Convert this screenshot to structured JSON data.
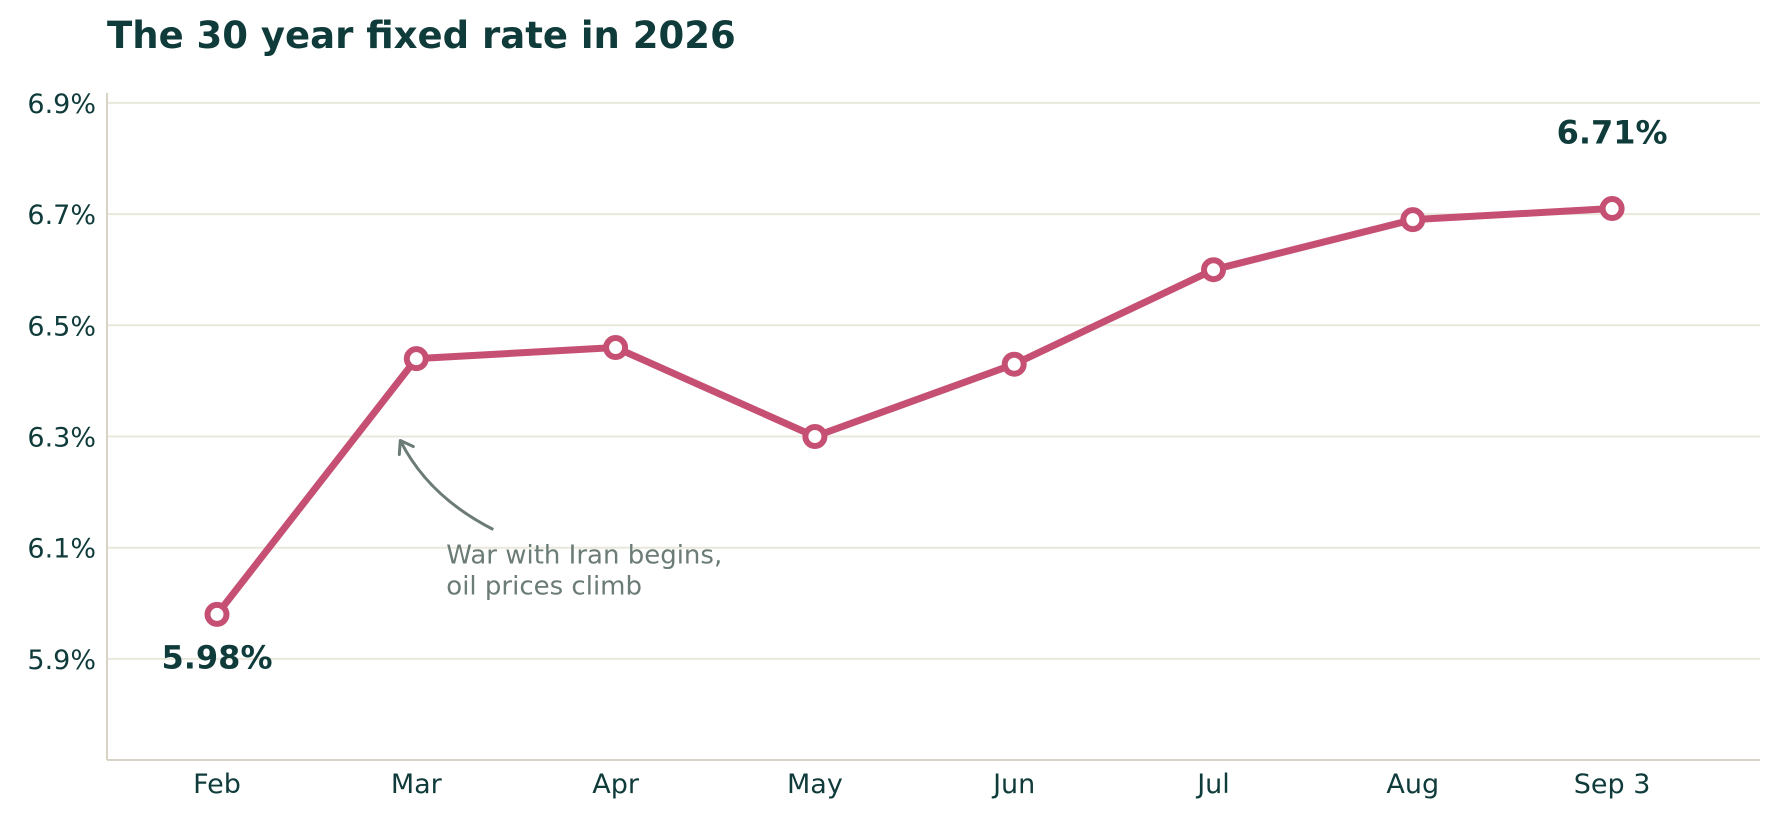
{
  "chart_data": {
    "type": "line",
    "title": "The 30 year fixed rate in 2026",
    "xlabel": "",
    "ylabel": "",
    "categories": [
      "Feb",
      "Mar",
      "Apr",
      "May",
      "Jun",
      "Jul",
      "Aug",
      "Sep 3"
    ],
    "series": [
      {
        "values": [
          5.98,
          6.44,
          6.46,
          6.3,
          6.43,
          6.6,
          6.69,
          6.71
        ]
      }
    ],
    "yticks": [
      5.9,
      6.1,
      6.3,
      6.5,
      6.7,
      6.9
    ],
    "ytick_labels": [
      "5.9%",
      "6.1%",
      "6.3%",
      "6.5%",
      "6.7%",
      "6.9%"
    ],
    "ylim": [
      5.8,
      7.0
    ],
    "grid": "horizontal",
    "data_labels": [
      {
        "category": "Feb",
        "value": 5.98,
        "text": "5.98%"
      },
      {
        "category": "Sep 3",
        "value": 6.71,
        "text": "6.71%"
      }
    ],
    "annotation": {
      "category": "Mar",
      "lines": [
        "War with Iran begins,",
        "oil prices climb"
      ]
    },
    "colors": {
      "line": "#c65074",
      "marker_fill": "#ffffff",
      "text": "#0f3b3a",
      "grid": "#e9e8dc",
      "axis": "#d8d3c5",
      "annotation": "#6b7b76"
    }
  }
}
